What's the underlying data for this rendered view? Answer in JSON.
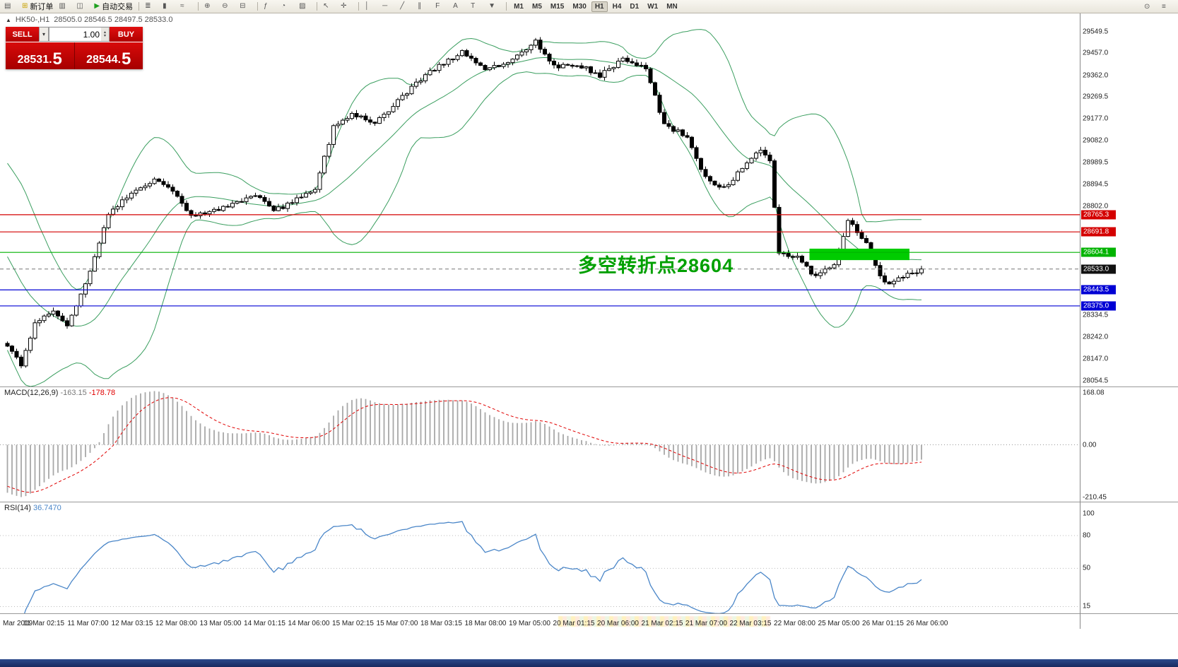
{
  "toolbar": {
    "buttons": [
      {
        "name": "new-chart-icon",
        "glyph": "▤"
      },
      {
        "name": "new-order-button",
        "label": "新订单",
        "glyph": "⊞",
        "glyph_color": "#c8a200"
      },
      {
        "name": "charts-list-icon",
        "glyph": "▥"
      },
      {
        "name": "profiles-icon",
        "glyph": "◫"
      },
      {
        "name": "autotrade-button",
        "label": "自动交易",
        "glyph": "▶",
        "glyph_color": "#1fa01f"
      },
      {
        "sep": true
      },
      {
        "name": "bar-chart-icon",
        "glyph": "≣"
      },
      {
        "name": "candle-chart-icon",
        "glyph": "▮"
      },
      {
        "name": "line-chart-icon",
        "glyph": "≈"
      },
      {
        "sep": true
      },
      {
        "name": "zoom-in-icon",
        "glyph": "⊕"
      },
      {
        "name": "zoom-out-icon",
        "glyph": "⊖"
      },
      {
        "name": "tile-windows-icon",
        "glyph": "⊟"
      },
      {
        "sep": true
      },
      {
        "name": "indicators-icon",
        "glyph": "ƒ"
      },
      {
        "name": "periods-icon",
        "glyph": "◔"
      },
      {
        "name": "template-icon",
        "glyph": "▨"
      },
      {
        "sep": true
      },
      {
        "name": "cursor-icon",
        "glyph": "↖"
      },
      {
        "name": "crosshair-icon",
        "glyph": "✛"
      },
      {
        "sep": true
      },
      {
        "name": "vertical-line-icon",
        "glyph": "│"
      },
      {
        "name": "horizontal-line-icon",
        "glyph": "─"
      },
      {
        "name": "trendline-icon",
        "glyph": "╱"
      },
      {
        "name": "channel-icon",
        "glyph": "∥"
      },
      {
        "name": "fibonacci-icon",
        "glyph": "F"
      },
      {
        "name": "text-icon",
        "glyph": "A"
      },
      {
        "name": "label-icon",
        "glyph": "T"
      },
      {
        "name": "arrow-objects-icon",
        "glyph": "▼"
      },
      {
        "sep": true
      }
    ],
    "timeframes": [
      "M1",
      "M5",
      "M15",
      "M30",
      "H1",
      "H4",
      "D1",
      "W1",
      "MN"
    ],
    "active_timeframe": "H1",
    "right_icons": [
      {
        "name": "zoom-tool-icon",
        "glyph": "⊙"
      },
      {
        "name": "menu-icon",
        "glyph": "≡"
      }
    ]
  },
  "chart_header": {
    "symbol_period": "HK50-,H1",
    "ohlc": "28505.0 28546.5 28497.5 28533.0"
  },
  "trade_panel": {
    "sell_label": "SELL",
    "buy_label": "BUY",
    "volume": "1.00",
    "sell_price_main": "28531.",
    "sell_price_big": "5",
    "buy_price_main": "28544.",
    "buy_price_big": "5"
  },
  "annotation": {
    "text": "多空转折点28604",
    "color": "#00a000"
  },
  "price_axis": {
    "ticks": [
      "29549.5",
      "29457.0",
      "29362.0",
      "29269.5",
      "29177.0",
      "29082.0",
      "28989.5",
      "28894.5",
      "28802.0",
      "28334.5",
      "28242.0",
      "28147.0",
      "28054.5"
    ]
  },
  "macd_panel": {
    "label": "MACD(12,26,9)",
    "value_main": "-163.15",
    "value_signal": "-178.78",
    "axis": [
      "168.08",
      "0.00",
      "-210.45"
    ]
  },
  "rsi_panel": {
    "label": "RSI(14)",
    "value": "36.7470",
    "axis": [
      "100",
      "80",
      "50",
      "15"
    ],
    "levels": [
      80,
      50,
      15
    ]
  },
  "time_axis": {
    "origin": "Mar 2019",
    "labels": [
      "11 Mar 02:15",
      "11 Mar 07:00",
      "12 Mar 03:15",
      "12 Mar 08:00",
      "13 Mar 05:00",
      "14 Mar 01:15",
      "14 Mar 06:00",
      "15 Mar 02:15",
      "15 Mar 07:00",
      "18 Mar 03:15",
      "18 Mar 08:00",
      "19 Mar 05:00",
      "20 Mar 01:15",
      "20 Mar 06:00",
      "21 Mar 02:15",
      "21 Mar 07:00",
      "22 Mar 03:15",
      "22 Mar 08:00",
      "25 Mar 05:00",
      "26 Mar 01:15",
      "26 Mar 06:00"
    ]
  },
  "chart_data": {
    "type": "candlestick",
    "symbol": "HK50-",
    "timeframe": "H1",
    "title": "HK50-,H1 28505.0 28546.5 28497.5 28533.0",
    "bars": 200,
    "last_close": 28533.0,
    "ohlc_current": {
      "open": 28505.0,
      "high": 28546.5,
      "low": 28497.5,
      "close": 28533.0
    },
    "ylim": [
      28030,
      29630
    ],
    "bands_color": "#3a9e5f",
    "close_anchors": [
      [
        0,
        28210
      ],
      [
        3,
        28120
      ],
      [
        6,
        28300
      ],
      [
        10,
        28350
      ],
      [
        13,
        28290
      ],
      [
        17,
        28470
      ],
      [
        22,
        28770
      ],
      [
        26,
        28840
      ],
      [
        32,
        28920
      ],
      [
        37,
        28850
      ],
      [
        40,
        28760
      ],
      [
        46,
        28790
      ],
      [
        50,
        28820
      ],
      [
        54,
        28850
      ],
      [
        58,
        28780
      ],
      [
        63,
        28830
      ],
      [
        67,
        28880
      ],
      [
        71,
        29140
      ],
      [
        75,
        29200
      ],
      [
        80,
        29160
      ],
      [
        84,
        29230
      ],
      [
        89,
        29330
      ],
      [
        93,
        29390
      ],
      [
        99,
        29460
      ],
      [
        104,
        29390
      ],
      [
        109,
        29420
      ],
      [
        115,
        29510
      ],
      [
        119,
        29400
      ],
      [
        124,
        29410
      ],
      [
        129,
        29360
      ],
      [
        134,
        29430
      ],
      [
        139,
        29390
      ],
      [
        143,
        29150
      ],
      [
        148,
        29100
      ],
      [
        152,
        28920
      ],
      [
        156,
        28880
      ],
      [
        160,
        28960
      ],
      [
        164,
        29050
      ],
      [
        166,
        29000
      ],
      [
        168,
        28600
      ],
      [
        172,
        28580
      ],
      [
        176,
        28500
      ],
      [
        180,
        28560
      ],
      [
        183,
        28740
      ],
      [
        187,
        28640
      ],
      [
        191,
        28470
      ],
      [
        195,
        28500
      ],
      [
        199,
        28533
      ]
    ],
    "indicators": [
      {
        "name": "Bollinger Bands",
        "period": 20,
        "deviation": 2
      },
      {
        "name": "MACD",
        "params": [
          12,
          26,
          9
        ],
        "main": -163.15,
        "signal": -178.78,
        "range": [
          -210.45,
          168.08
        ]
      },
      {
        "name": "RSI",
        "period": 14,
        "value": 36.747,
        "levels": [
          15,
          50,
          80
        ]
      }
    ],
    "levels": [
      {
        "price": 28765.3,
        "color": "#d40000",
        "style": "solid"
      },
      {
        "price": 28691.8,
        "color": "#d40000",
        "style": "solid"
      },
      {
        "price": 28604.1,
        "color": "#00b300",
        "style": "solid"
      },
      {
        "price": 28533.0,
        "color": "#777777",
        "style": "dashed",
        "badge": "#111111"
      },
      {
        "price": 28443.5,
        "color": "#0000d4",
        "style": "solid"
      },
      {
        "price": 28375.0,
        "color": "#0000d4",
        "style": "solid"
      }
    ],
    "highlight_box": {
      "bar_start": 175,
      "bar_end": 196,
      "price_top": 28620,
      "price_bottom": 28571,
      "color": "#00cc00"
    }
  }
}
